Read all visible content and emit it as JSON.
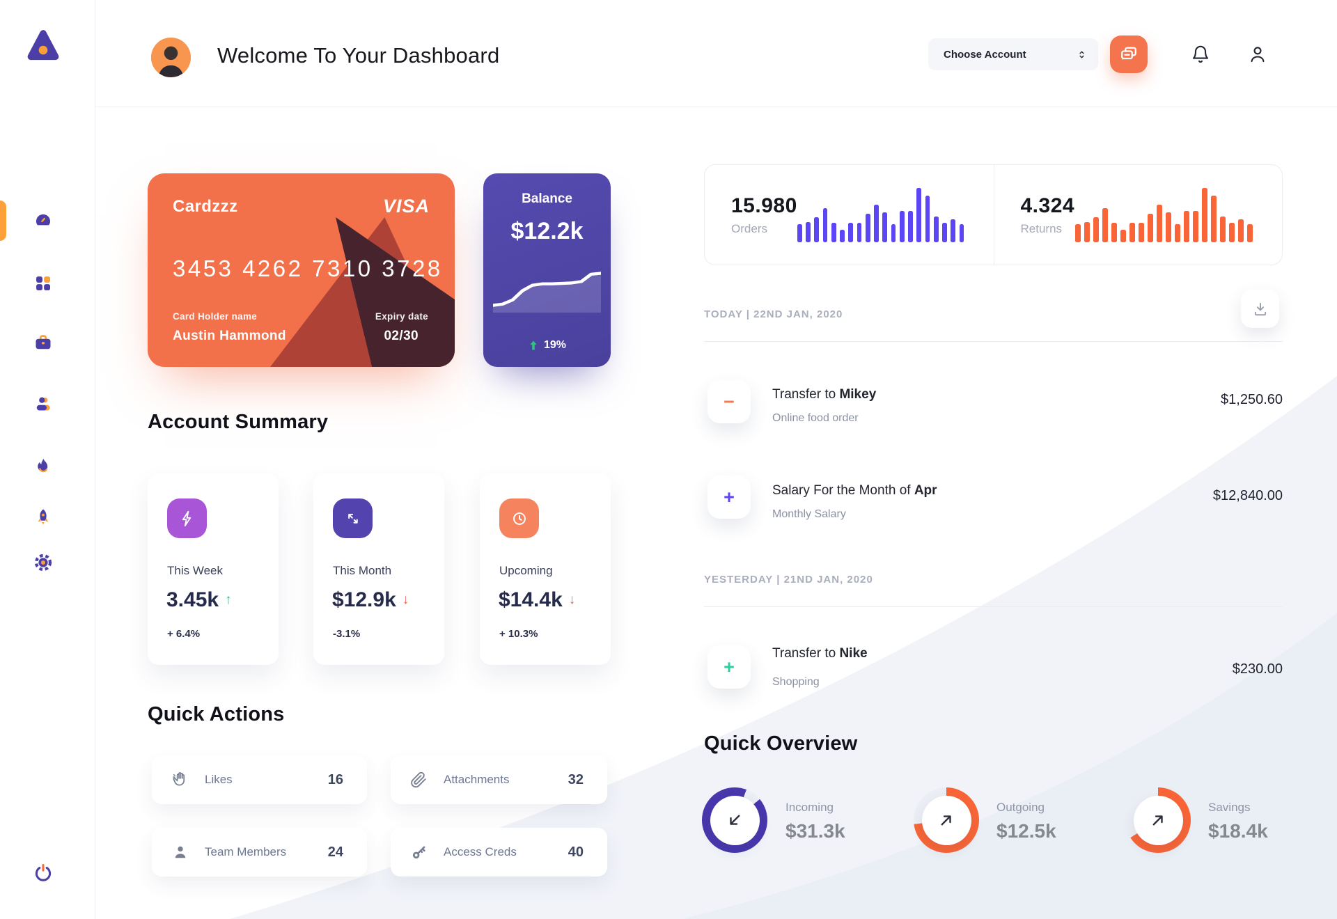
{
  "header": {
    "title": "Welcome To Your Dashboard",
    "account_select": {
      "label": "Choose Account",
      "icon": "chevrons-up-down-icon"
    },
    "icons": [
      "chat-icon",
      "bell-icon",
      "user-icon"
    ]
  },
  "sidebar": {
    "items": [
      {
        "icon": "dashboard-gauge-icon",
        "active": true
      },
      {
        "icon": "grid-apps-icon",
        "active": false
      },
      {
        "icon": "briefcase-icon",
        "active": false
      },
      {
        "icon": "users-icon",
        "active": false
      },
      {
        "icon": "flame-icon",
        "active": false
      },
      {
        "icon": "rocket-icon",
        "active": false
      },
      {
        "icon": "gear-icon",
        "active": false
      }
    ],
    "logout_icon": "power-icon"
  },
  "credit_card": {
    "name": "Cardzzz",
    "brand": "VISA",
    "number": "3453 4262 7310 3728",
    "holder_label": "Card Holder name",
    "holder": "Austin Hammond",
    "expiry_label": "Expiry date",
    "expiry": "02/30"
  },
  "balance_card": {
    "label": "Balance",
    "value": "$12.2k",
    "delta": "19%",
    "trend": "up"
  },
  "stats": {
    "orders": {
      "value": "15.980",
      "label": "Orders"
    },
    "returns": {
      "value": "4.324",
      "label": "Returns"
    }
  },
  "chart_data": [
    {
      "type": "bar",
      "title": "Orders activity",
      "ylim": [
        0,
        100
      ],
      "grid": false,
      "values": [
        33,
        37,
        45,
        62,
        35,
        22,
        35,
        35,
        52,
        68,
        55,
        33,
        57,
        57,
        100,
        85,
        47,
        35,
        42,
        33
      ],
      "color": "#5B45F5"
    },
    {
      "type": "bar",
      "title": "Returns activity",
      "ylim": [
        0,
        100
      ],
      "grid": false,
      "values": [
        33,
        37,
        45,
        62,
        35,
        22,
        35,
        35,
        52,
        68,
        55,
        33,
        57,
        57,
        100,
        85,
        47,
        35,
        42,
        33
      ],
      "color": "#F96537"
    },
    {
      "type": "line",
      "title": "Balance trend",
      "ylim": [
        0,
        100
      ],
      "grid": false,
      "points": [
        8,
        11,
        20,
        40,
        52,
        55,
        55,
        56,
        57,
        60,
        76,
        78
      ],
      "color": "#FFFFFF"
    }
  ],
  "account_summary": {
    "title": "Account Summary",
    "cards": [
      {
        "icon": "lightning-icon",
        "icon_bg": "#A855D8",
        "title": "This Week",
        "value": "3.45k",
        "arrow": "↑",
        "arrow_color": "#2DBE7E",
        "delta": "+ 6.4%"
      },
      {
        "icon": "diagonal-arrows-icon",
        "icon_bg": "#5243AE",
        "title": "This Month",
        "value": "$12.9k",
        "arrow": "↓",
        "arrow_color": "#F0614D",
        "delta": "-3.1%"
      },
      {
        "icon": "clock-icon",
        "icon_bg": "#F4835E",
        "title": "Upcoming",
        "value": "$14.4k",
        "arrow": "↓",
        "arrow_color": "#F0614D",
        "delta": "+ 10.3%"
      }
    ]
  },
  "quick_actions": {
    "title": "Quick Actions",
    "items": [
      {
        "icon": "waving-hand-icon",
        "label": "Likes",
        "count": "16"
      },
      {
        "icon": "paperclip-icon",
        "label": "Attachments",
        "count": "32"
      },
      {
        "icon": "person-icon",
        "label": "Team Members",
        "count": "24"
      },
      {
        "icon": "key-icon",
        "label": "Access Creds",
        "count": "40"
      }
    ]
  },
  "transactions": {
    "download_icon": "download-icon",
    "groups": [
      {
        "header": "TODAY | 22ND JAN, 2020",
        "rows": [
          {
            "sign": "−",
            "sign_color": "#F4794F",
            "title_prefix": "Transfer to ",
            "title_bold": "Mikey",
            "subtitle": "Online food order",
            "amount": "$1,250.60"
          },
          {
            "sign": "+",
            "sign_color": "#5B45F5",
            "title_prefix": "Salary For the Month of ",
            "title_bold": "Apr",
            "subtitle": "Monthly Salary",
            "amount": "$12,840.00"
          }
        ]
      },
      {
        "header": "YESTERDAY | 21ND JAN, 2020",
        "rows": [
          {
            "sign": "+",
            "sign_color": "#2BCFA0",
            "title_prefix": "Transfer to ",
            "title_bold": "Nike",
            "subtitle": "Shopping",
            "amount": "$230.00"
          }
        ]
      }
    ]
  },
  "quick_overview": {
    "title": "Quick Overview",
    "rings": [
      {
        "label": "Incoming",
        "value": "$31.3k",
        "percent": 92,
        "start_deg": 50,
        "color": "#4837AD",
        "arrow": "down-left-arrow-icon"
      },
      {
        "label": "Outgoing",
        "value": "$12.5k",
        "percent": 73,
        "start_deg": 0,
        "color": "#F96537",
        "arrow": "up-right-arrow-icon"
      },
      {
        "label": "Savings",
        "value": "$18.4k",
        "percent": 66,
        "start_deg": 0,
        "color": "#F96537",
        "arrow": "up-right-arrow-icon"
      }
    ]
  },
  "colors": {
    "accent_orange": "#F2714B",
    "accent_purple": "#4B3FA7",
    "bar_purple": "#5B45F5",
    "bar_orange": "#F96537",
    "positive_green": "#2DBE7E",
    "negative_red": "#F0614D",
    "sidebar_orange": "#FBA03B"
  }
}
